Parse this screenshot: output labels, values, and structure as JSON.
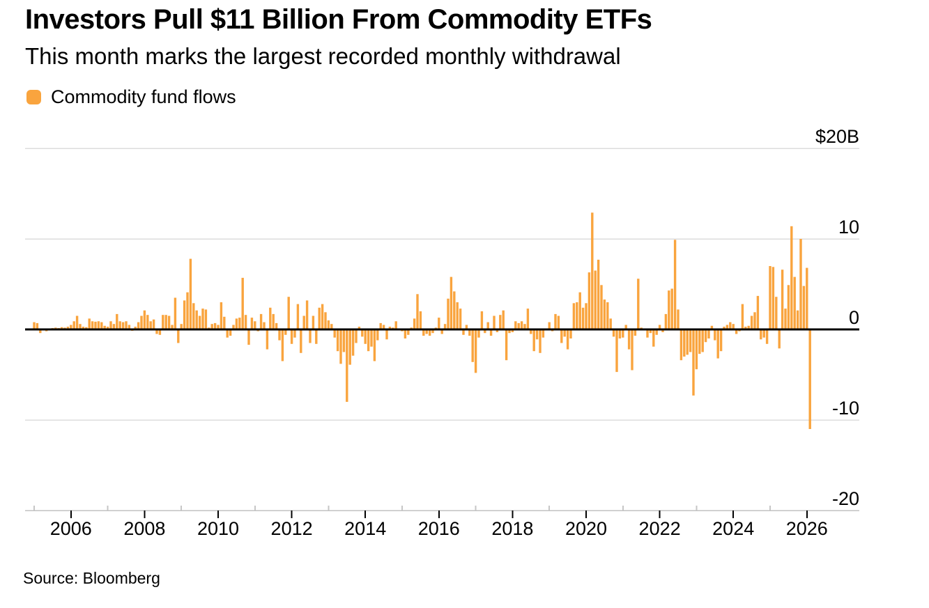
{
  "header": {
    "title": "Investors Pull $11 Billion From Commodity ETFs",
    "subtitle": "This month marks the largest recorded monthly withdrawal"
  },
  "legend": {
    "label": "Commodity fund flows",
    "swatch_color": "#F9A43E"
  },
  "source": {
    "text": "Source: Bloomberg"
  },
  "chart_data": {
    "type": "bar",
    "title": "Investors Pull $11 Billion From Commodity ETFs",
    "subtitle": "This month marks the largest recorded monthly withdrawal",
    "series_name": "Commodity fund flows",
    "start_month": "2005-01",
    "end_month": "2026-02",
    "values": [
      0.8,
      0.7,
      -0.4,
      0.1,
      -0.2,
      0.1,
      0.15,
      0.2,
      0.15,
      0.25,
      0.2,
      0.3,
      0.5,
      0.9,
      1.5,
      0.6,
      0.3,
      0.25,
      1.2,
      0.9,
      0.85,
      0.9,
      0.8,
      0.4,
      0.3,
      0.9,
      0.6,
      1.7,
      0.9,
      0.8,
      0.9,
      0.5,
      -0.15,
      0.3,
      0.8,
      1.5,
      2.1,
      1.6,
      0.9,
      1.1,
      -0.5,
      -0.6,
      1.6,
      1.6,
      1.5,
      0.5,
      3.5,
      -1.5,
      0.6,
      3.2,
      4.1,
      7.8,
      2.9,
      2.1,
      1.5,
      2.3,
      2.2,
      0.2,
      0.6,
      0.7,
      0.5,
      3.0,
      1.4,
      -0.9,
      -0.7,
      0.5,
      1.2,
      1.3,
      5.7,
      1.6,
      -1.7,
      1.3,
      0.9,
      -0.2,
      1.7,
      0.8,
      -2.2,
      2.4,
      1.7,
      0.7,
      -1.2,
      -3.5,
      -0.6,
      3.6,
      -1.6,
      -0.9,
      2.8,
      -2.6,
      1.5,
      3.2,
      -1.5,
      1.5,
      -1.6,
      2.4,
      2.8,
      1.9,
      1.0,
      0.6,
      -0.9,
      -2.4,
      -3.8,
      -2.5,
      -8.0,
      -3.9,
      -2.9,
      -1.5,
      0.3,
      -0.8,
      -1.6,
      -2.4,
      -1.9,
      -3.5,
      -1.2,
      0.7,
      0.5,
      -1.1,
      0.3,
      0.2,
      0.9,
      0.1,
      -0.2,
      -1.0,
      -0.6,
      0.2,
      1.2,
      3.9,
      2.0,
      -0.7,
      -0.5,
      -0.7,
      -0.4,
      0.2,
      1.3,
      -0.5,
      0.6,
      3.4,
      5.8,
      4.2,
      3.0,
      2.3,
      -0.6,
      0.5,
      -0.7,
      -3.6,
      -4.8,
      -0.9,
      2.0,
      -0.4,
      0.8,
      -0.7,
      1.5,
      -0.3,
      1.6,
      2.1,
      -3.4,
      -0.4,
      -0.3,
      0.9,
      0.7,
      0.9,
      0.6,
      2.3,
      -0.5,
      -2.4,
      -1.1,
      -2.6,
      -0.9,
      0.1,
      0.8,
      -0.2,
      1.7,
      1.5,
      -1.5,
      -0.8,
      -2.2,
      -1.0,
      2.9,
      3.0,
      4.1,
      2.4,
      2.9,
      6.3,
      12.9,
      6.5,
      7.7,
      4.9,
      3.3,
      3.0,
      1.2,
      -0.8,
      -4.7,
      -1.0,
      -0.9,
      0.5,
      -2.2,
      -4.5,
      -0.7,
      5.6,
      0.2,
      -0.1,
      -0.9,
      -0.4,
      -1.9,
      -0.6,
      0.5,
      -0.3,
      1.7,
      4.3,
      4.5,
      9.9,
      2.2,
      -3.4,
      -3.0,
      -2.8,
      -2.5,
      -7.3,
      -4.4,
      -2.7,
      -2.5,
      -1.4,
      -1.0,
      0.4,
      -1.2,
      -3.2,
      -2.4,
      0.3,
      0.5,
      0.8,
      0.6,
      -0.5,
      -0.2,
      2.8,
      0.3,
      0.4,
      1.5,
      1.9,
      3.7,
      -1.1,
      -0.9,
      -1.6,
      7.0,
      6.9,
      3.6,
      -2.1,
      6.6,
      2.3,
      4.9,
      11.4,
      5.8,
      2.1,
      10.0,
      4.8,
      6.8,
      -11.0
    ],
    "y_axis": {
      "ticks": [
        {
          "value": 20,
          "label": "$20B"
        },
        {
          "value": 10,
          "label": "10"
        },
        {
          "value": 0,
          "label": "0"
        },
        {
          "value": -10,
          "label": "-10"
        },
        {
          "value": -20,
          "label": "-20"
        }
      ],
      "range": [
        -20,
        20
      ],
      "gridlines": true,
      "label_side": "right"
    },
    "x_axis": {
      "major_tick_years": [
        2006,
        2008,
        2010,
        2012,
        2014,
        2016,
        2018,
        2020,
        2022,
        2024,
        2026
      ],
      "minor_tick_years": [
        2005,
        2007,
        2009,
        2011,
        2013,
        2015,
        2017,
        2019,
        2021,
        2023,
        2025
      ]
    },
    "colors": {
      "bar": "#F9A43E",
      "zero_line": "#000000",
      "gridline": "#DCDCDC",
      "axis_line": "#C2C2C2",
      "tick_major": "#000000",
      "tick_minor": "#C6C6C6",
      "label": "#000000"
    },
    "legend_position": "top-left"
  }
}
